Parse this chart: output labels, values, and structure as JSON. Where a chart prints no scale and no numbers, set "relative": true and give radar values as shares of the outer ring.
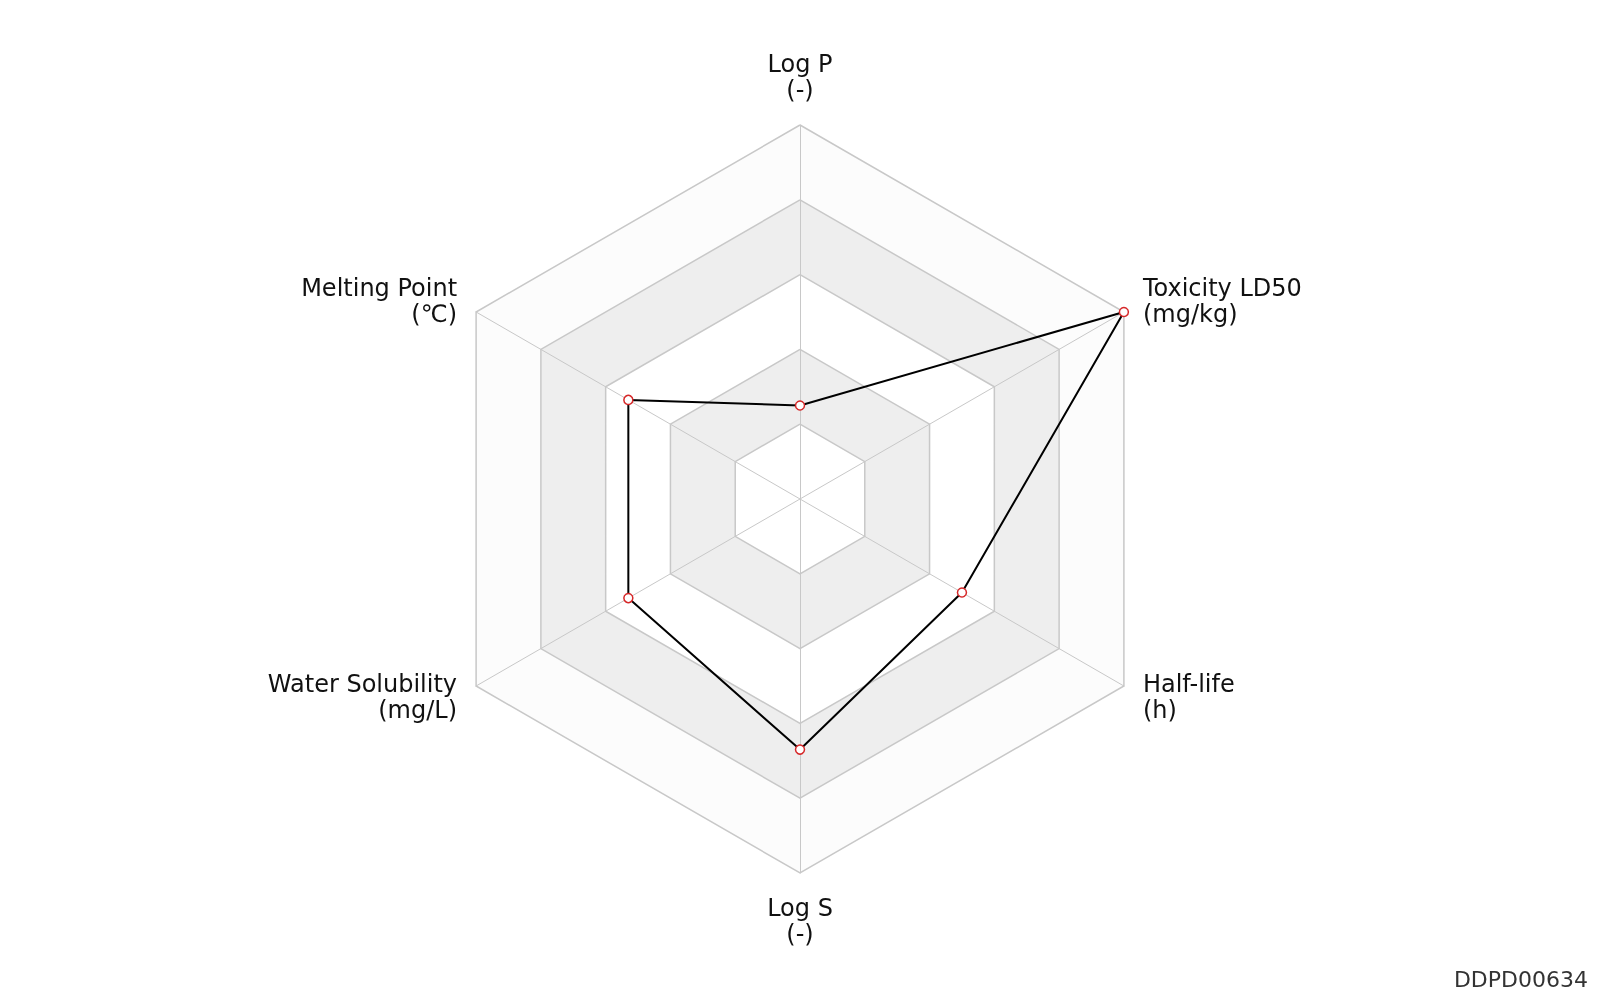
{
  "chart_data": {
    "type": "radar",
    "relative": true,
    "grid": true,
    "marker": "circle",
    "categories": [
      "Log P\n(-)",
      "Toxicity LD50\n(mg/kg)",
      "Half-life\n(h)",
      "Log S\n(-)",
      "Water Solubility\n(mg/L)",
      "Melting Point\n(℃)"
    ],
    "series": [
      {
        "color": "#000000",
        "values": [
          0.25,
          1.0,
          0.5,
          0.67,
          0.53,
          0.53
        ]
      }
    ],
    "annotations": [
      "DDPD00634"
    ]
  }
}
